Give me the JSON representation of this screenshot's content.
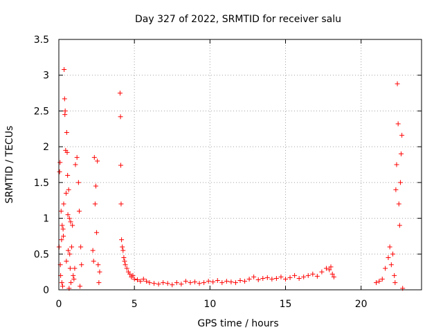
{
  "chart_data": {
    "type": "scatter",
    "title": "Day 327 of 2022, SRMTID for receiver salu",
    "xlabel": "GPS time / hours",
    "ylabel": "SRMTID / TECUs",
    "xlim": [
      0,
      24
    ],
    "ylim": [
      0,
      3.5
    ],
    "xticks": [
      0,
      5,
      10,
      15,
      20
    ],
    "yticks": [
      0,
      0.5,
      1,
      1.5,
      2,
      2.5,
      3,
      3.5
    ],
    "ytick_labels": [
      "0",
      "0.5",
      "1",
      "1.5",
      "2",
      "2.5",
      "3",
      "3.5"
    ],
    "grid": true,
    "marker": "+",
    "color": "#ff0000",
    "series": [
      {
        "name": "SRMTID",
        "x": [
          0.02,
          0.05,
          0.08,
          0.1,
          0.12,
          0.15,
          0.18,
          0.2,
          0.22,
          0.25,
          0.28,
          0.3,
          0.32,
          0.35,
          0.38,
          0.4,
          0.42,
          0.45,
          0.48,
          0.5,
          0.52,
          0.55,
          0.58,
          0.6,
          0.62,
          0.65,
          0.68,
          0.7,
          0.72,
          0.75,
          0.78,
          0.8,
          0.85,
          0.9,
          0.95,
          1.0,
          1.05,
          1.1,
          1.2,
          1.3,
          1.35,
          1.4,
          1.45,
          1.5,
          2.25,
          2.3,
          2.35,
          2.4,
          2.45,
          2.5,
          2.55,
          2.6,
          2.65,
          2.7,
          4.05,
          4.08,
          4.1,
          4.12,
          4.15,
          4.2,
          4.25,
          4.3,
          4.35,
          4.4,
          4.5,
          4.6,
          4.7,
          4.8,
          4.9,
          5.0,
          5.2,
          5.4,
          5.6,
          5.8,
          6.0,
          6.3,
          6.6,
          6.9,
          7.2,
          7.5,
          7.8,
          8.1,
          8.4,
          8.7,
          9.0,
          9.3,
          9.6,
          9.9,
          10.2,
          10.5,
          10.8,
          11.1,
          11.4,
          11.7,
          12.0,
          12.3,
          12.6,
          12.9,
          13.2,
          13.5,
          13.8,
          14.1,
          14.4,
          14.7,
          15.0,
          15.3,
          15.6,
          15.9,
          16.2,
          16.5,
          16.8,
          17.1,
          17.4,
          17.7,
          17.9,
          18.0,
          18.1,
          18.2,
          21.0,
          21.2,
          21.4,
          21.6,
          21.8,
          21.9,
          22.0,
          22.1,
          22.2,
          22.25,
          22.3,
          22.35,
          22.4,
          22.45,
          22.5,
          22.55,
          22.6,
          22.65,
          22.7,
          22.75
        ],
        "y": [
          0.6,
          1.65,
          1.78,
          0.35,
          0.2,
          1.1,
          0.7,
          0.1,
          0.9,
          0.05,
          0.85,
          0.75,
          1.2,
          3.08,
          2.67,
          2.45,
          2.5,
          1.95,
          1.35,
          0.4,
          2.2,
          1.92,
          1.6,
          1.05,
          0.55,
          1.4,
          0.02,
          1.0,
          0.5,
          0.3,
          0.95,
          0.1,
          0.6,
          0.9,
          0.2,
          0.15,
          0.3,
          1.75,
          1.85,
          1.5,
          1.1,
          0.05,
          0.6,
          0.35,
          0.55,
          0.4,
          1.85,
          1.2,
          1.45,
          0.8,
          1.8,
          0.35,
          0.1,
          0.25,
          2.75,
          2.42,
          1.74,
          1.2,
          0.7,
          0.6,
          0.55,
          0.45,
          0.4,
          0.35,
          0.3,
          0.25,
          0.22,
          0.18,
          0.2,
          0.15,
          0.14,
          0.12,
          0.15,
          0.12,
          0.1,
          0.09,
          0.08,
          0.1,
          0.09,
          0.07,
          0.1,
          0.08,
          0.12,
          0.1,
          0.11,
          0.09,
          0.1,
          0.12,
          0.11,
          0.13,
          0.1,
          0.12,
          0.11,
          0.1,
          0.13,
          0.12,
          0.15,
          0.18,
          0.14,
          0.16,
          0.17,
          0.15,
          0.16,
          0.18,
          0.15,
          0.17,
          0.2,
          0.16,
          0.18,
          0.2,
          0.22,
          0.19,
          0.25,
          0.3,
          0.28,
          0.32,
          0.22,
          0.18,
          0.1,
          0.12,
          0.15,
          0.3,
          0.45,
          0.6,
          0.35,
          0.5,
          0.2,
          0.1,
          1.4,
          1.75,
          2.88,
          2.32,
          1.2,
          0.9,
          1.5,
          1.9,
          2.16,
          0.02
        ]
      }
    ]
  }
}
